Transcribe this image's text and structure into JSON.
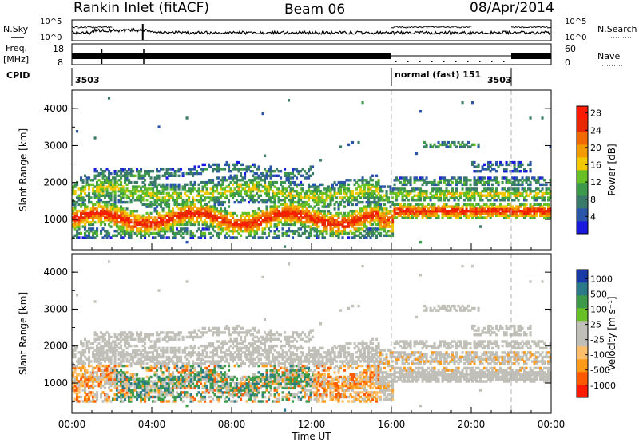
{
  "header": {
    "station": "Rankin Inlet (fitACF)",
    "beam": "Beam 06",
    "date": "08/Apr/2014"
  },
  "strips": {
    "nsky_label": "N.Sky",
    "freq_label_1": "Freq.",
    "freq_label_2": "[MHz]",
    "cpid_label": "CPID",
    "nsearch_label": "N.Search",
    "nave_label": "Nave",
    "noise_tick_top": "10^5",
    "noise_tick_bottom": "10^0",
    "noise_tick_top_right": "10^5",
    "noise_tick_bottom_right": "10^0",
    "freq_ticks": [
      "18",
      "8"
    ],
    "nave_ticks": [
      "60",
      "0"
    ],
    "cpid_entries": [
      {
        "label": "3503",
        "start_hour": 0.0
      },
      {
        "label": "normal (fast) 151",
        "start_hour": 16.0
      },
      {
        "label": "3503",
        "start_hour": 22.0
      }
    ]
  },
  "xaxis": {
    "title": "Time UT",
    "ticks": [
      "00:00",
      "04:00",
      "08:00",
      "12:00",
      "16:00",
      "20:00",
      "00:00"
    ],
    "tick_hours": [
      0,
      4,
      8,
      12,
      16,
      20,
      24
    ]
  },
  "colors": {
    "power": [
      "#1a1adf",
      "#2b55a8",
      "#3a7a68",
      "#3c9a4a",
      "#66c026",
      "#f2c800",
      "#f29a00",
      "#f06a00",
      "#e82800",
      "#ff1a00"
    ],
    "velocity": [
      "#ff1a00",
      "#ff5a00",
      "#ff9a1a",
      "#ffbf6a",
      "#c0c0b8",
      "#c0c0b8",
      "#66c026",
      "#3c9a4a",
      "#2b7a8a",
      "#1a3aa8"
    ]
  },
  "chart_data": [
    {
      "type": "heatmap",
      "panel": "power",
      "ylabel": "Slant Range [km]",
      "colorbar_label": "Power [dB]",
      "colorbar_ticks": [
        "4",
        "8",
        "12",
        "16",
        "20",
        "24",
        "28"
      ],
      "yticks": [
        "1000",
        "2000",
        "3000",
        "4000"
      ],
      "ylim": [
        180,
        4500
      ],
      "xlim": [
        0,
        24
      ],
      "x_unit": "hours UT",
      "dashed_markers_hours": [
        16.0,
        22.0
      ]
    },
    {
      "type": "heatmap",
      "panel": "velocity",
      "ylabel": "Slant Range [km]",
      "colorbar_label": "Velocity [m s⁻¹]",
      "colorbar_ticks": [
        "1000",
        "500",
        "100",
        "25",
        "-25",
        "-100",
        "-500",
        "-1000"
      ],
      "yticks": [
        "1000",
        "2000",
        "3000",
        "4000"
      ],
      "ylim": [
        180,
        4500
      ],
      "xlim": [
        0,
        24
      ],
      "x_unit": "hours UT",
      "dashed_markers_hours": [
        16.0,
        22.0
      ]
    }
  ]
}
